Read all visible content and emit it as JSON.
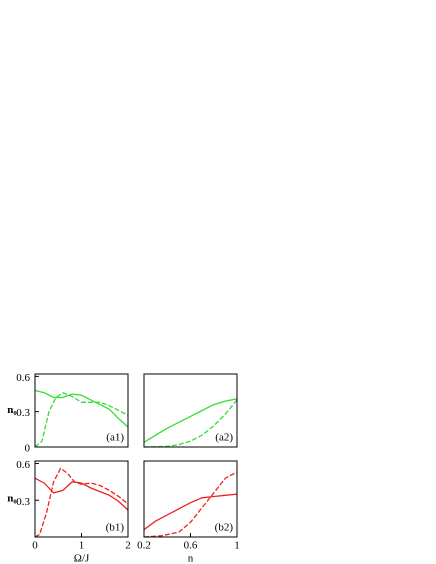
{
  "chart_data": [
    {
      "type": "line",
      "label": "(a1)",
      "ylabel": "n₀",
      "xlim": [
        0,
        2
      ],
      "ylim": [
        0,
        0.62
      ],
      "yticks": [
        0,
        0.3,
        0.6
      ],
      "series": [
        {
          "color": "#33dd33",
          "dash": false,
          "x": [
            0,
            0.2,
            0.4,
            0.6,
            0.8,
            1.0,
            1.2,
            1.4,
            1.6,
            1.8,
            2
          ],
          "values": [
            0.48,
            0.46,
            0.42,
            0.42,
            0.45,
            0.44,
            0.4,
            0.36,
            0.32,
            0.24,
            0.17
          ]
        },
        {
          "color": "#33dd33",
          "dash": true,
          "x": [
            0,
            0.15,
            0.3,
            0.45,
            0.6,
            0.8,
            1.0,
            1.2,
            1.4,
            1.6,
            1.8,
            2
          ],
          "values": [
            0,
            0.05,
            0.3,
            0.42,
            0.46,
            0.43,
            0.38,
            0.38,
            0.38,
            0.35,
            0.31,
            0.27
          ]
        }
      ]
    },
    {
      "type": "line",
      "label": "(a2)",
      "xlim": [
        0.2,
        1
      ],
      "ylim": [
        0,
        0.62
      ],
      "series": [
        {
          "color": "#33dd33",
          "dash": false,
          "x": [
            0.2,
            0.3,
            0.4,
            0.5,
            0.6,
            0.7,
            0.8,
            0.9,
            1
          ],
          "values": [
            0.04,
            0.1,
            0.16,
            0.21,
            0.26,
            0.31,
            0.36,
            0.39,
            0.41
          ]
        },
        {
          "color": "#33dd33",
          "dash": true,
          "x": [
            0.2,
            0.4,
            0.5,
            0.6,
            0.7,
            0.8,
            0.9,
            1
          ],
          "values": [
            0,
            0.005,
            0.02,
            0.05,
            0.1,
            0.18,
            0.28,
            0.4
          ]
        }
      ]
    },
    {
      "type": "line",
      "label": "(b1)",
      "ylabel": "n₀",
      "xlabel": "Ω/J",
      "xlim": [
        0,
        2
      ],
      "ylim": [
        0,
        0.62
      ],
      "yticks": [
        0.3,
        0.6
      ],
      "xticks": [
        0,
        1,
        2
      ],
      "series": [
        {
          "color": "#ee2222",
          "dash": false,
          "x": [
            0,
            0.2,
            0.4,
            0.6,
            0.8,
            1.0,
            1.2,
            1.4,
            1.6,
            1.8,
            2
          ],
          "values": [
            0.48,
            0.44,
            0.36,
            0.38,
            0.45,
            0.44,
            0.4,
            0.37,
            0.34,
            0.29,
            0.22
          ]
        },
        {
          "color": "#ee2222",
          "dash": true,
          "x": [
            0,
            0.1,
            0.25,
            0.4,
            0.55,
            0.7,
            0.85,
            1.0,
            1.2,
            1.4,
            1.6,
            1.8,
            2
          ],
          "values": [
            0,
            0.02,
            0.2,
            0.45,
            0.56,
            0.52,
            0.45,
            0.43,
            0.44,
            0.42,
            0.38,
            0.33,
            0.27
          ]
        }
      ]
    },
    {
      "type": "line",
      "label": "(b2)",
      "xlabel": "n",
      "xlim": [
        0.2,
        1
      ],
      "ylim": [
        0,
        0.62
      ],
      "xticks": [
        0.2,
        0.6,
        1
      ],
      "series": [
        {
          "color": "#ee2222",
          "dash": false,
          "x": [
            0.2,
            0.3,
            0.4,
            0.5,
            0.6,
            0.7,
            0.8,
            0.9,
            1
          ],
          "values": [
            0.06,
            0.13,
            0.18,
            0.23,
            0.28,
            0.32,
            0.33,
            0.34,
            0.35
          ]
        },
        {
          "color": "#ee2222",
          "dash": true,
          "x": [
            0.2,
            0.35,
            0.5,
            0.6,
            0.7,
            0.8,
            0.9,
            1
          ],
          "values": [
            0,
            0.01,
            0.04,
            0.12,
            0.24,
            0.36,
            0.48,
            0.53
          ]
        }
      ]
    }
  ]
}
